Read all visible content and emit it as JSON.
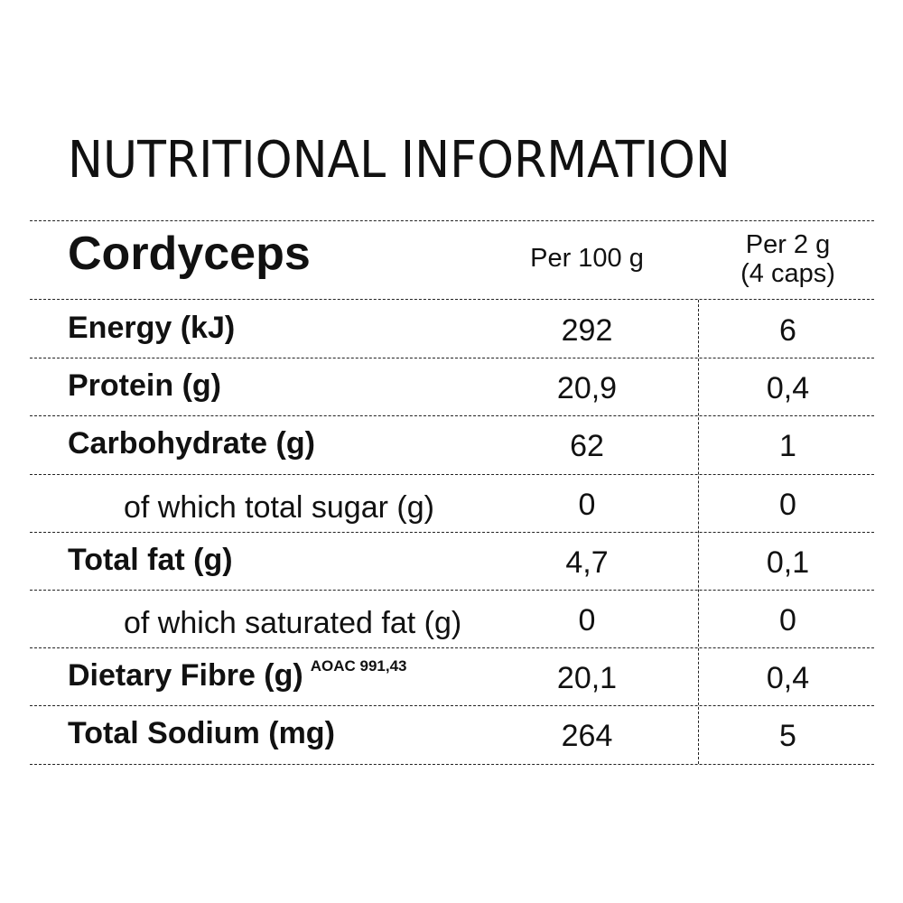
{
  "title": "NUTRITIONAL INFORMATION",
  "product": "Cordyceps",
  "columns": {
    "per100": "Per 100 g",
    "perServing_line1": "Per 2 g",
    "perServing_line2": "(4 caps)"
  },
  "rows": [
    {
      "label": "Energy (kJ)",
      "note": "",
      "per100": "292",
      "perServing": "6",
      "sub": false
    },
    {
      "label": "Protein (g)",
      "note": "",
      "per100": "20,9",
      "perServing": "0,4",
      "sub": false
    },
    {
      "label": "Carbohydrate (g)",
      "note": "",
      "per100": "62",
      "perServing": "1",
      "sub": false
    },
    {
      "label": "of which total sugar (g)",
      "note": "",
      "per100": "0",
      "perServing": "0",
      "sub": true
    },
    {
      "label": "Total fat (g)",
      "note": "",
      "per100": "4,7",
      "perServing": "0,1",
      "sub": false
    },
    {
      "label": "of which saturated fat (g)",
      "note": "",
      "per100": "0",
      "perServing": "0",
      "sub": true
    },
    {
      "label": "Dietary Fibre (g)",
      "note": "AOAC 991,43",
      "per100": "20,1",
      "perServing": "0,4",
      "sub": false
    },
    {
      "label": "Total Sodium (mg)",
      "note": "",
      "per100": "264",
      "perServing": "5",
      "sub": false
    }
  ]
}
